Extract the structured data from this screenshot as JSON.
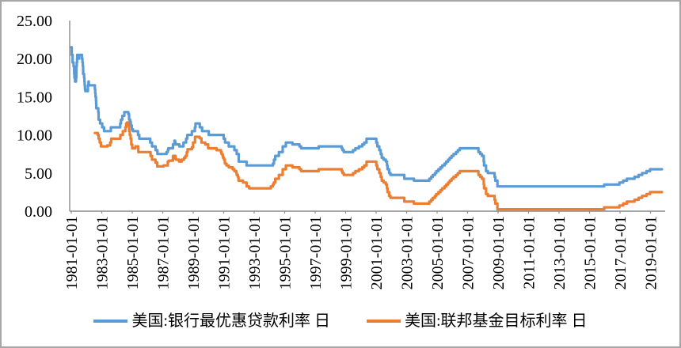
{
  "chart_data": {
    "type": "line",
    "title": "",
    "legend_position": "bottom",
    "grid": "off",
    "axis_color": "#8c8c8c",
    "frame_border_color": "#a6a6a6",
    "y_axis": {
      "range": [
        0,
        25
      ],
      "tick_step": 5,
      "tick_labels": [
        "0.00",
        "5.00",
        "10.00",
        "15.00",
        "20.00",
        "25.00"
      ]
    },
    "x_axis": {
      "range": [
        1981.0,
        2019.8
      ],
      "tick_labels": [
        "1981-01-01",
        "1983-01-01",
        "1985-01-01",
        "1987-01-01",
        "1989-01-01",
        "1991-01-01",
        "1993-01-01",
        "1995-01-01",
        "1997-01-01",
        "1999-01-01",
        "2001-01-01",
        "2003-01-01",
        "2005-01-01",
        "2007-01-01",
        "2009-01-01",
        "2011-01-01",
        "2013-01-01",
        "2015-01-01",
        "2017-01-01",
        "2019-01-01"
      ],
      "tick_years": [
        1981,
        1983,
        1985,
        1987,
        1989,
        1991,
        1993,
        1995,
        1997,
        1999,
        2001,
        2003,
        2005,
        2007,
        2009,
        2011,
        2013,
        2015,
        2017,
        2019
      ]
    },
    "series": [
      {
        "name": "美国:银行最优惠贷款利率 日",
        "color": "#5B9BD5",
        "interpolation": "step-after",
        "end_t": 2019.75,
        "points": [
          [
            1981.0,
            21.5
          ],
          [
            1981.03,
            20.5
          ],
          [
            1981.09,
            19.5
          ],
          [
            1981.15,
            19.0
          ],
          [
            1981.19,
            18.0
          ],
          [
            1981.21,
            17.5
          ],
          [
            1981.25,
            17.0
          ],
          [
            1981.31,
            17.5
          ],
          [
            1981.33,
            18.0
          ],
          [
            1981.34,
            19.0
          ],
          [
            1981.36,
            19.5
          ],
          [
            1981.38,
            20.0
          ],
          [
            1981.39,
            20.5
          ],
          [
            1981.42,
            20.0
          ],
          [
            1981.52,
            20.5
          ],
          [
            1981.7,
            20.0
          ],
          [
            1981.73,
            19.5
          ],
          [
            1981.76,
            19.0
          ],
          [
            1981.78,
            18.0
          ],
          [
            1981.84,
            17.5
          ],
          [
            1981.86,
            17.0
          ],
          [
            1981.88,
            16.5
          ],
          [
            1981.9,
            16.0
          ],
          [
            1981.92,
            15.75
          ],
          [
            1982.09,
            16.5
          ],
          [
            1982.13,
            17.0
          ],
          [
            1982.15,
            16.5
          ],
          [
            1982.55,
            16.0
          ],
          [
            1982.57,
            15.5
          ],
          [
            1982.59,
            15.0
          ],
          [
            1982.62,
            14.5
          ],
          [
            1982.63,
            14.0
          ],
          [
            1982.64,
            13.5
          ],
          [
            1982.77,
            13.0
          ],
          [
            1982.79,
            12.0
          ],
          [
            1982.89,
            11.5
          ],
          [
            1983.03,
            11.0
          ],
          [
            1983.15,
            10.5
          ],
          [
            1983.6,
            11.0
          ],
          [
            1984.21,
            11.5
          ],
          [
            1984.26,
            12.0
          ],
          [
            1984.35,
            12.5
          ],
          [
            1984.48,
            13.0
          ],
          [
            1984.74,
            12.75
          ],
          [
            1984.79,
            12.0
          ],
          [
            1984.86,
            11.75
          ],
          [
            1984.9,
            11.25
          ],
          [
            1984.97,
            10.75
          ],
          [
            1985.04,
            10.5
          ],
          [
            1985.38,
            10.0
          ],
          [
            1985.46,
            9.5
          ],
          [
            1986.18,
            9.0
          ],
          [
            1986.3,
            8.5
          ],
          [
            1986.53,
            8.0
          ],
          [
            1986.65,
            7.5
          ],
          [
            1987.25,
            7.75
          ],
          [
            1987.33,
            8.0
          ],
          [
            1987.37,
            8.25
          ],
          [
            1987.67,
            8.75
          ],
          [
            1987.77,
            9.25
          ],
          [
            1987.81,
            9.0
          ],
          [
            1987.84,
            8.75
          ],
          [
            1988.09,
            8.5
          ],
          [
            1988.36,
            9.0
          ],
          [
            1988.53,
            9.5
          ],
          [
            1988.61,
            10.0
          ],
          [
            1988.91,
            10.5
          ],
          [
            1989.11,
            11.0
          ],
          [
            1989.15,
            11.5
          ],
          [
            1989.43,
            11.0
          ],
          [
            1989.58,
            10.5
          ],
          [
            1990.02,
            10.0
          ],
          [
            1991.0,
            9.5
          ],
          [
            1991.09,
            9.0
          ],
          [
            1991.33,
            8.5
          ],
          [
            1991.7,
            8.0
          ],
          [
            1991.85,
            7.5
          ],
          [
            1991.98,
            6.5
          ],
          [
            1992.5,
            6.0
          ],
          [
            1994.23,
            6.25
          ],
          [
            1994.3,
            6.75
          ],
          [
            1994.38,
            7.25
          ],
          [
            1994.62,
            7.75
          ],
          [
            1994.87,
            8.5
          ],
          [
            1995.08,
            9.0
          ],
          [
            1995.51,
            8.75
          ],
          [
            1995.97,
            8.5
          ],
          [
            1996.08,
            8.25
          ],
          [
            1997.23,
            8.5
          ],
          [
            1998.74,
            8.25
          ],
          [
            1998.79,
            8.0
          ],
          [
            1998.88,
            7.75
          ],
          [
            1999.49,
            8.0
          ],
          [
            1999.64,
            8.25
          ],
          [
            1999.87,
            8.5
          ],
          [
            2000.09,
            8.75
          ],
          [
            2000.22,
            9.0
          ],
          [
            2000.37,
            9.5
          ],
          [
            2001.01,
            9.0
          ],
          [
            2001.08,
            8.5
          ],
          [
            2001.21,
            8.0
          ],
          [
            2001.3,
            7.5
          ],
          [
            2001.37,
            7.0
          ],
          [
            2001.49,
            6.75
          ],
          [
            2001.64,
            6.5
          ],
          [
            2001.71,
            6.0
          ],
          [
            2001.75,
            5.5
          ],
          [
            2001.85,
            5.0
          ],
          [
            2001.94,
            4.75
          ],
          [
            2002.85,
            4.25
          ],
          [
            2003.48,
            4.0
          ],
          [
            2004.49,
            4.25
          ],
          [
            2004.61,
            4.5
          ],
          [
            2004.72,
            4.75
          ],
          [
            2004.86,
            5.0
          ],
          [
            2004.95,
            5.25
          ],
          [
            2005.09,
            5.5
          ],
          [
            2005.22,
            5.75
          ],
          [
            2005.34,
            6.0
          ],
          [
            2005.49,
            6.25
          ],
          [
            2005.6,
            6.5
          ],
          [
            2005.72,
            6.75
          ],
          [
            2005.83,
            7.0
          ],
          [
            2005.95,
            7.25
          ],
          [
            2006.08,
            7.5
          ],
          [
            2006.24,
            7.75
          ],
          [
            2006.36,
            8.0
          ],
          [
            2006.49,
            8.25
          ],
          [
            2007.71,
            7.75
          ],
          [
            2007.83,
            7.5
          ],
          [
            2007.94,
            7.25
          ],
          [
            2008.06,
            6.5
          ],
          [
            2008.08,
            6.0
          ],
          [
            2008.21,
            5.25
          ],
          [
            2008.33,
            5.0
          ],
          [
            2008.77,
            4.5
          ],
          [
            2008.82,
            4.0
          ],
          [
            2008.96,
            3.25
          ],
          [
            2015.96,
            3.5
          ],
          [
            2016.96,
            3.75
          ],
          [
            2017.21,
            4.0
          ],
          [
            2017.45,
            4.25
          ],
          [
            2017.95,
            4.5
          ],
          [
            2018.22,
            4.75
          ],
          [
            2018.45,
            5.0
          ],
          [
            2018.74,
            5.25
          ],
          [
            2018.97,
            5.5
          ]
        ]
      },
      {
        "name": "美国:联邦基金目标利率 日",
        "color": "#ED7D31",
        "interpolation": "step-after",
        "end_t": 2019.75,
        "points": [
          [
            1982.55,
            10.25
          ],
          [
            1982.74,
            10.0
          ],
          [
            1982.8,
            9.5
          ],
          [
            1982.87,
            9.0
          ],
          [
            1982.95,
            8.5
          ],
          [
            1983.37,
            8.625
          ],
          [
            1983.55,
            9.0
          ],
          [
            1983.62,
            9.5
          ],
          [
            1984.22,
            10.0
          ],
          [
            1984.38,
            10.5
          ],
          [
            1984.55,
            11.0
          ],
          [
            1984.6,
            11.5
          ],
          [
            1984.66,
            11.63
          ],
          [
            1984.74,
            11.25
          ],
          [
            1984.79,
            10.5
          ],
          [
            1984.84,
            10.0
          ],
          [
            1984.89,
            9.5
          ],
          [
            1984.94,
            8.75
          ],
          [
            1985.0,
            8.25
          ],
          [
            1985.21,
            8.5
          ],
          [
            1985.4,
            7.75
          ],
          [
            1986.2,
            7.25
          ],
          [
            1986.3,
            6.75
          ],
          [
            1986.52,
            6.375
          ],
          [
            1986.64,
            5.875
          ],
          [
            1987.05,
            6.0
          ],
          [
            1987.33,
            6.5
          ],
          [
            1987.4,
            6.625
          ],
          [
            1987.67,
            7.25
          ],
          [
            1987.83,
            6.875
          ],
          [
            1987.88,
            6.75
          ],
          [
            1988.07,
            6.5
          ],
          [
            1988.24,
            6.75
          ],
          [
            1988.4,
            7.0
          ],
          [
            1988.49,
            7.25
          ],
          [
            1988.58,
            7.75
          ],
          [
            1988.63,
            8.125
          ],
          [
            1988.91,
            8.38
          ],
          [
            1988.99,
            9.0
          ],
          [
            1989.12,
            9.75
          ],
          [
            1989.42,
            9.5625
          ],
          [
            1989.54,
            9.0
          ],
          [
            1989.79,
            8.75
          ],
          [
            1989.98,
            8.25
          ],
          [
            1990.53,
            8.0
          ],
          [
            1990.82,
            7.75
          ],
          [
            1990.86,
            7.5
          ],
          [
            1990.93,
            7.25
          ],
          [
            1990.96,
            7.0
          ],
          [
            1991.02,
            6.75
          ],
          [
            1991.08,
            6.25
          ],
          [
            1991.18,
            6.0
          ],
          [
            1991.33,
            5.75
          ],
          [
            1991.59,
            5.5
          ],
          [
            1991.7,
            5.25
          ],
          [
            1991.83,
            5.0
          ],
          [
            1991.85,
            4.75
          ],
          [
            1991.93,
            4.5
          ],
          [
            1991.97,
            4.0
          ],
          [
            1992.27,
            3.75
          ],
          [
            1992.5,
            3.25
          ],
          [
            1992.67,
            3.0
          ],
          [
            1994.09,
            3.25
          ],
          [
            1994.22,
            3.5
          ],
          [
            1994.29,
            3.75
          ],
          [
            1994.38,
            4.25
          ],
          [
            1994.62,
            4.75
          ],
          [
            1994.87,
            5.5
          ],
          [
            1995.08,
            6.0
          ],
          [
            1995.51,
            5.75
          ],
          [
            1995.97,
            5.5
          ],
          [
            1996.08,
            5.25
          ],
          [
            1997.23,
            5.5
          ],
          [
            1998.74,
            5.25
          ],
          [
            1998.79,
            5.0
          ],
          [
            1998.88,
            4.75
          ],
          [
            1999.49,
            5.0
          ],
          [
            1999.64,
            5.25
          ],
          [
            1999.87,
            5.5
          ],
          [
            2000.09,
            5.75
          ],
          [
            2000.22,
            6.0
          ],
          [
            2000.37,
            6.5
          ],
          [
            2001.01,
            6.0
          ],
          [
            2001.08,
            5.5
          ],
          [
            2001.21,
            5.0
          ],
          [
            2001.3,
            4.5
          ],
          [
            2001.37,
            4.0
          ],
          [
            2001.49,
            3.75
          ],
          [
            2001.64,
            3.5
          ],
          [
            2001.71,
            3.0
          ],
          [
            2001.75,
            2.5
          ],
          [
            2001.85,
            2.0
          ],
          [
            2001.94,
            1.75
          ],
          [
            2002.85,
            1.25
          ],
          [
            2003.48,
            1.0
          ],
          [
            2004.49,
            1.25
          ],
          [
            2004.61,
            1.5
          ],
          [
            2004.72,
            1.75
          ],
          [
            2004.86,
            2.0
          ],
          [
            2004.95,
            2.25
          ],
          [
            2005.09,
            2.5
          ],
          [
            2005.22,
            2.75
          ],
          [
            2005.34,
            3.0
          ],
          [
            2005.49,
            3.25
          ],
          [
            2005.6,
            3.5
          ],
          [
            2005.72,
            3.75
          ],
          [
            2005.83,
            4.0
          ],
          [
            2005.95,
            4.25
          ],
          [
            2006.08,
            4.5
          ],
          [
            2006.24,
            4.75
          ],
          [
            2006.36,
            5.0
          ],
          [
            2006.49,
            5.25
          ],
          [
            2007.71,
            4.75
          ],
          [
            2007.83,
            4.5
          ],
          [
            2007.94,
            4.25
          ],
          [
            2008.06,
            3.5
          ],
          [
            2008.08,
            3.0
          ],
          [
            2008.21,
            2.25
          ],
          [
            2008.33,
            2.0
          ],
          [
            2008.77,
            1.5
          ],
          [
            2008.82,
            1.0
          ],
          [
            2008.96,
            0.25
          ],
          [
            2015.96,
            0.5
          ],
          [
            2016.96,
            0.75
          ],
          [
            2017.21,
            1.0
          ],
          [
            2017.45,
            1.25
          ],
          [
            2017.95,
            1.5
          ],
          [
            2018.22,
            1.75
          ],
          [
            2018.45,
            2.0
          ],
          [
            2018.74,
            2.25
          ],
          [
            2018.97,
            2.5
          ]
        ]
      }
    ]
  },
  "legend": {
    "items": [
      {
        "label": "美国:银行最优惠贷款利率 日"
      },
      {
        "label": "美国:联邦基金目标利率 日"
      }
    ]
  }
}
